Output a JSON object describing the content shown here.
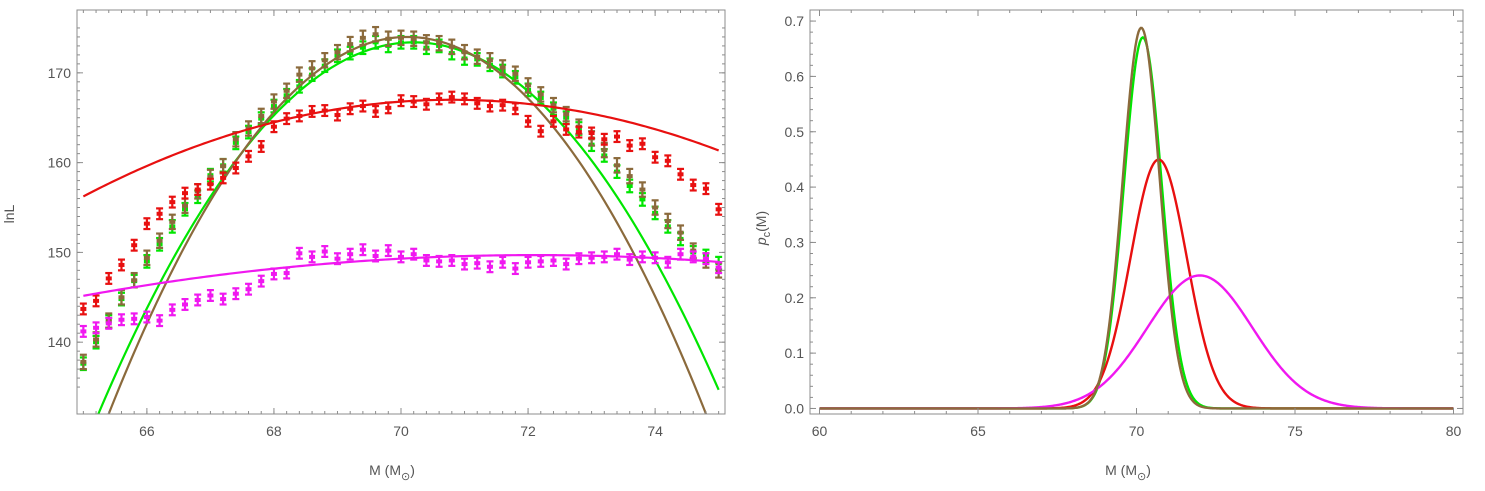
{
  "chart_data": [
    {
      "type": "scatter",
      "title": "",
      "xlabel": "M (M",
      "xlabel_sub": "⊙",
      "xlabel_close": ")",
      "ylabel": "lnL",
      "xlim": [
        64.9,
        75.1
      ],
      "ylim": [
        132,
        177
      ],
      "xticks": [
        "66",
        "68",
        "70",
        "72",
        "74"
      ],
      "yticks": [
        "140",
        "150",
        "160",
        "170"
      ],
      "grid": false,
      "legend": "none",
      "series": [
        {
          "color": "#00e600",
          "fit": [
            -1.68,
            70.2,
            173.4
          ],
          "x": [
            65.0,
            65.2,
            65.4,
            65.6,
            65.8,
            66.0,
            66.2,
            66.4,
            66.6,
            66.8,
            67.0,
            67.2,
            67.4,
            67.6,
            67.8,
            68.0,
            68.2,
            68.4,
            68.6,
            68.8,
            69.0,
            69.2,
            69.4,
            69.6,
            69.8,
            70.0,
            70.2,
            70.4,
            70.6,
            70.8,
            71.0,
            71.2,
            71.4,
            71.6,
            71.8,
            72.0,
            72.2,
            72.4,
            72.6,
            72.8,
            73.0,
            73.2,
            73.4,
            73.6,
            73.8,
            74.0,
            74.2,
            74.4,
            74.6,
            74.8,
            75.0
          ],
          "y": [
            137.6,
            140.0,
            142.3,
            144.8,
            146.8,
            149.0,
            150.9,
            152.9,
            154.8,
            156.2,
            158.6,
            159.7,
            162.2,
            163.4,
            164.9,
            166.3,
            167.5,
            168.5,
            169.8,
            170.8,
            171.9,
            172.2,
            172.8,
            173.4,
            173.0,
            173.4,
            173.4,
            172.8,
            173.0,
            172.2,
            171.6,
            171.5,
            170.9,
            170.2,
            169.5,
            168.1,
            167.2,
            166.0,
            165.0,
            163.8,
            162.0,
            160.8,
            159.0,
            157.4,
            155.9,
            154.4,
            152.9,
            151.5,
            150.0,
            149.6,
            148.8
          ],
          "err": 0.7
        },
        {
          "color": "#8b6a3c",
          "fit": [
            -1.9,
            70.1,
            174.0
          ],
          "x": [
            65.0,
            65.2,
            65.4,
            65.6,
            65.8,
            66.0,
            66.2,
            66.4,
            66.6,
            66.8,
            67.0,
            67.2,
            67.4,
            67.6,
            67.8,
            68.0,
            68.2,
            68.4,
            68.6,
            68.8,
            69.0,
            69.2,
            69.4,
            69.6,
            69.8,
            70.0,
            70.2,
            70.4,
            70.6,
            70.8,
            71.0,
            71.2,
            71.4,
            71.6,
            71.8,
            72.0,
            72.2,
            72.4,
            72.6,
            72.8,
            73.0,
            73.2,
            73.4,
            73.6,
            73.8,
            74.0,
            74.2,
            74.4,
            74.6,
            74.8,
            75.0
          ],
          "y": [
            137.8,
            140.3,
            142.4,
            145.0,
            146.9,
            149.4,
            151.3,
            153.4,
            155.2,
            156.8,
            158.4,
            159.6,
            162.6,
            163.8,
            165.2,
            166.8,
            168.0,
            169.8,
            170.5,
            171.4,
            172.3,
            173.2,
            173.9,
            174.3,
            173.8,
            173.9,
            173.8,
            173.4,
            173.3,
            172.9,
            172.3,
            171.8,
            171.4,
            170.6,
            169.9,
            168.6,
            167.6,
            166.4,
            165.4,
            164.0,
            162.7,
            161.4,
            159.7,
            158.5,
            157.0,
            155.0,
            153.5,
            152.2,
            150.2,
            149.1,
            148.0
          ],
          "err": 0.8
        },
        {
          "color": "#e81010",
          "fit": [
            -0.32,
            70.8,
            167.0
          ],
          "x": [
            65.0,
            65.2,
            65.4,
            65.6,
            65.8,
            66.0,
            66.2,
            66.4,
            66.6,
            66.8,
            67.0,
            67.2,
            67.4,
            67.6,
            67.8,
            68.0,
            68.2,
            68.4,
            68.6,
            68.8,
            69.0,
            69.2,
            69.4,
            69.6,
            69.8,
            70.0,
            70.2,
            70.4,
            70.6,
            70.8,
            71.0,
            71.2,
            71.4,
            71.6,
            71.8,
            72.0,
            72.2,
            72.4,
            72.6,
            72.8,
            73.0,
            73.2,
            73.4,
            73.6,
            73.8,
            74.0,
            74.2,
            74.4,
            74.6,
            74.8,
            75.0
          ],
          "y": [
            143.7,
            144.6,
            147.1,
            148.6,
            150.8,
            153.2,
            154.3,
            155.6,
            156.6,
            157.0,
            157.6,
            158.3,
            159.4,
            160.7,
            161.8,
            164.0,
            164.9,
            165.2,
            165.7,
            165.8,
            165.3,
            166.0,
            166.3,
            165.7,
            166.1,
            166.9,
            166.8,
            166.5,
            167.1,
            167.3,
            167.1,
            166.6,
            166.3,
            166.4,
            166.0,
            164.6,
            163.5,
            164.6,
            163.7,
            163.4,
            163.3,
            162.6,
            162.9,
            161.9,
            162.1,
            160.6,
            160.2,
            158.7,
            157.5,
            157.1,
            154.8
          ],
          "err": 0.6
        },
        {
          "color": "#f018f0",
          "fit": [
            -0.09,
            72.1,
            149.7
          ],
          "x": [
            65.0,
            65.2,
            65.4,
            65.6,
            65.8,
            66.0,
            66.2,
            66.4,
            66.6,
            66.8,
            67.0,
            67.2,
            67.4,
            67.6,
            67.8,
            68.0,
            68.2,
            68.4,
            68.6,
            68.8,
            69.0,
            69.2,
            69.4,
            69.6,
            69.8,
            70.0,
            70.2,
            70.4,
            70.6,
            70.8,
            71.0,
            71.2,
            71.4,
            71.6,
            71.8,
            72.0,
            72.2,
            72.4,
            72.6,
            72.8,
            73.0,
            73.2,
            73.4,
            73.6,
            73.8,
            74.0,
            74.2,
            74.4,
            74.6,
            74.8,
            75.0
          ],
          "y": [
            141.2,
            141.6,
            142.1,
            142.5,
            142.6,
            142.8,
            142.4,
            143.6,
            144.2,
            144.7,
            145.2,
            144.8,
            145.4,
            145.9,
            146.8,
            147.6,
            147.7,
            149.9,
            149.5,
            150.1,
            149.3,
            149.8,
            150.3,
            149.6,
            150.2,
            149.5,
            149.8,
            149.1,
            149.0,
            149.1,
            148.7,
            148.8,
            148.4,
            148.9,
            148.2,
            148.9,
            149.0,
            149.1,
            148.7,
            149.3,
            149.4,
            149.5,
            149.8,
            149.2,
            149.5,
            149.4,
            148.9,
            149.8,
            149.5,
            149.3,
            148.3
          ],
          "err": 0.6
        }
      ]
    },
    {
      "type": "line",
      "title": "",
      "xlabel": "M (M",
      "xlabel_sub": "⊙",
      "xlabel_close": ")",
      "ylabel": "p",
      "ylabel_sub": "c",
      "ylabel_rest": "(M)",
      "xlim": [
        59.7,
        80.3
      ],
      "ylim": [
        -0.01,
        0.72
      ],
      "xticks": [
        "60",
        "65",
        "70",
        "75",
        "80"
      ],
      "yticks": [
        "0.0",
        "0.1",
        "0.2",
        "0.3",
        "0.4",
        "0.5",
        "0.6",
        "0.7"
      ],
      "grid": false,
      "legend": "none",
      "series": [
        {
          "color": "#00e600",
          "mean": 70.2,
          "sigma": 0.595
        },
        {
          "color": "#e81010",
          "mean": 70.7,
          "sigma": 0.887
        },
        {
          "color": "#f018f0",
          "mean": 72.0,
          "sigma": 1.66
        },
        {
          "color": "#8b6a3c",
          "mean": 70.15,
          "sigma": 0.58
        }
      ]
    }
  ]
}
